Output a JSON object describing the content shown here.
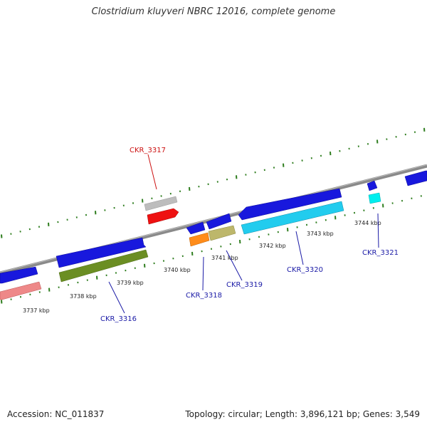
{
  "title": "Clostridium kluyveri NBRC 12016, complete genome",
  "footer": {
    "accession": "Accession: NC_011837",
    "summary": "Topology: circular; Length: 3,896,121 bp; Genes: 3,549"
  },
  "colors": {
    "backbone": "#888888",
    "tick": "#2e7d1e",
    "label_blue": "#1a1aa6",
    "label_red": "#cc1111"
  },
  "ticks": [
    {
      "label": "3737 kbp"
    },
    {
      "label": "3738 kbp"
    },
    {
      "label": "3739 kbp"
    },
    {
      "label": "3740 kbp"
    },
    {
      "label": "3741 kbp"
    },
    {
      "label": "3742 kbp"
    },
    {
      "label": "3743 kbp"
    },
    {
      "label": "3744 kbp"
    }
  ],
  "gene_labels": [
    {
      "name": "CKR_3316",
      "color": "#1a1aa6"
    },
    {
      "name": "CKR_3317",
      "color": "#cc1111"
    },
    {
      "name": "CKR_3318",
      "color": "#1a1aa6"
    },
    {
      "name": "CKR_3319",
      "color": "#1a1aa6"
    },
    {
      "name": "CKR_3320",
      "color": "#1a1aa6"
    },
    {
      "name": "CKR_3321",
      "color": "#1a1aa6"
    }
  ]
}
